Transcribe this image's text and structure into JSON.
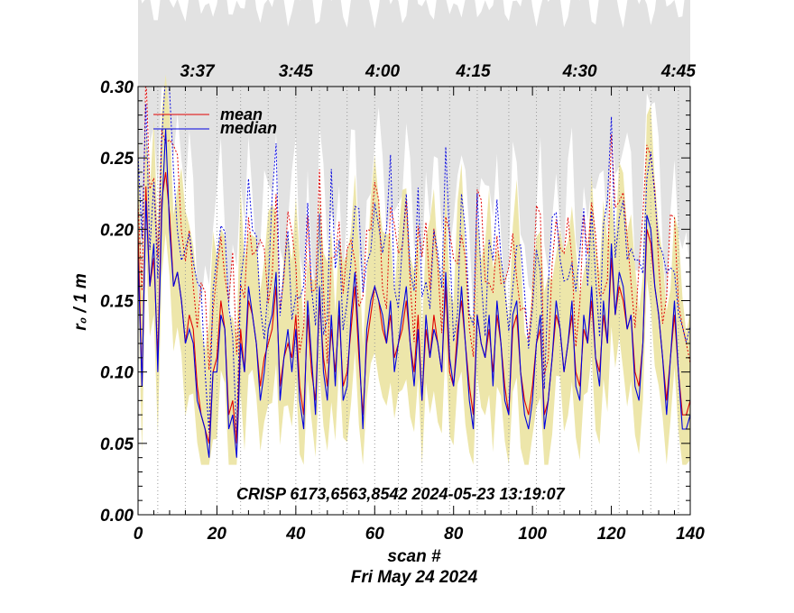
{
  "chart_data": {
    "type": "line",
    "xlabel": "scan #",
    "ylabel": "r₀ / 1 m",
    "xlim": [
      0,
      140
    ],
    "ylim": [
      0.0,
      0.3
    ],
    "xticks": [
      0,
      20,
      40,
      60,
      80,
      100,
      120,
      140
    ],
    "xtick_labels": [
      "0",
      "20",
      "40",
      "60",
      "80",
      "100",
      "120",
      "140"
    ],
    "yticks": [
      0.0,
      0.05,
      0.1,
      0.15,
      0.2,
      0.25,
      0.3
    ],
    "ytick_labels": [
      "0.00",
      "0.05",
      "0.10",
      "0.15",
      "0.20",
      "0.25",
      "0.30"
    ],
    "top_time_labels": [
      {
        "x": 15,
        "label": "3:37"
      },
      {
        "x": 40,
        "label": "3:45"
      },
      {
        "x": 62,
        "label": "4:00"
      },
      {
        "x": 85,
        "label": "4:15"
      },
      {
        "x": 112,
        "label": "4:30"
      },
      {
        "x": 137,
        "label": "4:45"
      }
    ],
    "annotation": "CRISP 6173,6563,8542 2024-05-23 13:19:07",
    "date": "Fri May 24 2024",
    "legend": [
      {
        "name": "mean",
        "color": "#e00000"
      },
      {
        "name": "median",
        "color": "#0000e0"
      }
    ],
    "scan_boundaries": [
      0,
      5,
      12,
      20,
      26,
      33,
      40,
      46,
      53,
      60,
      66,
      72,
      79,
      86,
      94,
      101,
      107,
      115,
      122,
      130,
      137
    ],
    "series": [
      {
        "name": "mean",
        "color": "#e00000",
        "values": [
          0.2,
          0.09,
          0.23,
          0.16,
          0.18,
          0.11,
          0.22,
          0.24,
          0.21,
          0.16,
          0.17,
          0.15,
          0.12,
          0.14,
          0.13,
          0.09,
          0.07,
          0.06,
          0.05,
          0.1,
          0.11,
          0.15,
          0.13,
          0.07,
          0.08,
          0.05,
          0.13,
          0.1,
          0.15,
          0.14,
          0.12,
          0.09,
          0.11,
          0.12,
          0.13,
          0.16,
          0.09,
          0.11,
          0.12,
          0.11,
          0.14,
          0.09,
          0.07,
          0.14,
          0.1,
          0.08,
          0.15,
          0.11,
          0.09,
          0.13,
          0.1,
          0.14,
          0.09,
          0.1,
          0.13,
          0.16,
          0.11,
          0.07,
          0.12,
          0.14,
          0.16,
          0.15,
          0.13,
          0.12,
          0.14,
          0.11,
          0.12,
          0.13,
          0.15,
          0.12,
          0.1,
          0.14,
          0.08,
          0.13,
          0.11,
          0.14,
          0.12,
          0.1,
          0.16,
          0.1,
          0.09,
          0.13,
          0.15,
          0.12,
          0.09,
          0.07,
          0.14,
          0.12,
          0.11,
          0.13,
          0.1,
          0.14,
          0.12,
          0.09,
          0.07,
          0.13,
          0.14,
          0.1,
          0.08,
          0.07,
          0.09,
          0.12,
          0.13,
          0.07,
          0.08,
          0.11,
          0.14,
          0.13,
          0.1,
          0.12,
          0.14,
          0.1,
          0.09,
          0.13,
          0.12,
          0.15,
          0.11,
          0.1,
          0.14,
          0.12,
          0.18,
          0.14,
          0.16,
          0.15,
          0.13,
          0.14,
          0.1,
          0.09,
          0.12,
          0.2,
          0.19,
          0.16,
          0.14,
          0.11,
          0.08,
          0.11,
          0.14,
          0.1,
          0.07,
          0.07,
          0.08
        ]
      },
      {
        "name": "median",
        "color": "#0000e0",
        "values": [
          0.18,
          0.09,
          0.22,
          0.16,
          0.19,
          0.1,
          0.21,
          0.27,
          0.2,
          0.16,
          0.17,
          0.15,
          0.12,
          0.13,
          0.12,
          0.08,
          0.07,
          0.06,
          0.04,
          0.1,
          0.1,
          0.14,
          0.13,
          0.06,
          0.07,
          0.04,
          0.12,
          0.1,
          0.16,
          0.14,
          0.12,
          0.08,
          0.1,
          0.13,
          0.14,
          0.17,
          0.08,
          0.11,
          0.13,
          0.1,
          0.13,
          0.08,
          0.06,
          0.15,
          0.11,
          0.07,
          0.16,
          0.1,
          0.08,
          0.14,
          0.09,
          0.15,
          0.08,
          0.09,
          0.14,
          0.17,
          0.12,
          0.06,
          0.13,
          0.15,
          0.16,
          0.15,
          0.14,
          0.12,
          0.15,
          0.1,
          0.12,
          0.14,
          0.16,
          0.12,
          0.09,
          0.13,
          0.08,
          0.14,
          0.11,
          0.13,
          0.12,
          0.1,
          0.17,
          0.11,
          0.09,
          0.12,
          0.16,
          0.12,
          0.08,
          0.06,
          0.14,
          0.12,
          0.11,
          0.14,
          0.09,
          0.15,
          0.12,
          0.08,
          0.07,
          0.14,
          0.15,
          0.1,
          0.07,
          0.06,
          0.08,
          0.12,
          0.14,
          0.06,
          0.08,
          0.11,
          0.15,
          0.13,
          0.1,
          0.12,
          0.15,
          0.09,
          0.08,
          0.14,
          0.12,
          0.16,
          0.11,
          0.09,
          0.15,
          0.12,
          0.19,
          0.14,
          0.17,
          0.16,
          0.13,
          0.14,
          0.09,
          0.08,
          0.12,
          0.21,
          0.2,
          0.16,
          0.14,
          0.11,
          0.07,
          0.11,
          0.15,
          0.1,
          0.06,
          0.06,
          0.07
        ]
      }
    ]
  }
}
